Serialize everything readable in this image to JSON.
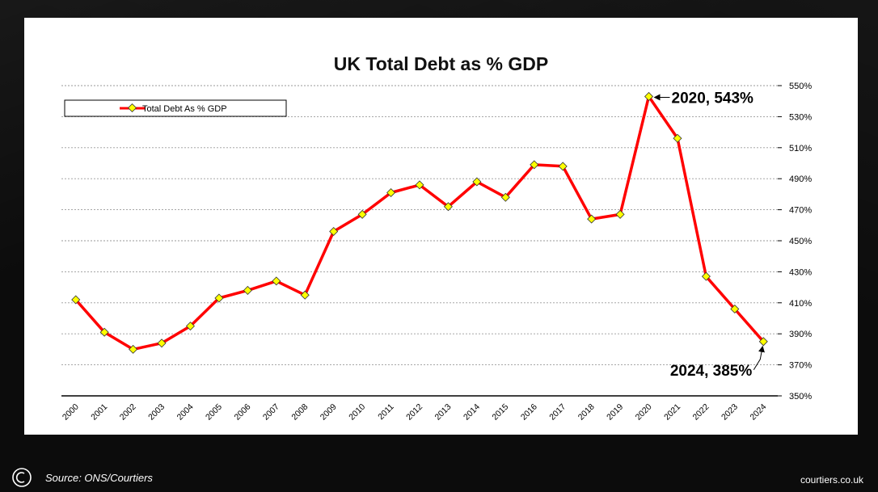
{
  "chart_data": {
    "type": "line",
    "title": "UK Total Debt as % GDP",
    "categories": [
      "2000",
      "2001",
      "2002",
      "2003",
      "2004",
      "2005",
      "2006",
      "2007",
      "2008",
      "2009",
      "2010",
      "2011",
      "2012",
      "2013",
      "2014",
      "2015",
      "2016",
      "2017",
      "2018",
      "2019",
      "2020",
      "2021",
      "2022",
      "2023",
      "2024"
    ],
    "series": [
      {
        "name": "Total Debt As % GDP",
        "values": [
          412,
          391,
          380,
          384,
          395,
          413,
          418,
          424,
          415,
          456,
          467,
          481,
          486,
          472,
          488,
          478,
          499,
          498,
          464,
          467,
          543,
          516,
          427,
          406,
          385
        ],
        "color": "#ff0000",
        "marker_color": "#ffff00"
      }
    ],
    "y_ticks": [
      "550%",
      "530%",
      "510%",
      "490%",
      "470%",
      "450%",
      "430%",
      "410%",
      "390%",
      "370%",
      "350%"
    ],
    "ylim": [
      350,
      550
    ],
    "grid": true,
    "legend_position": "top-left",
    "annotations": [
      {
        "text": "2020, 543%",
        "x": "2020",
        "y": 543
      },
      {
        "text": "2024, 385%",
        "x": "2024",
        "y": 385
      }
    ]
  },
  "footer": {
    "source": "Source: ONS/Courtiers",
    "site": "courtiers.co.uk",
    "logo_icon": "courtiers-logo-icon"
  }
}
